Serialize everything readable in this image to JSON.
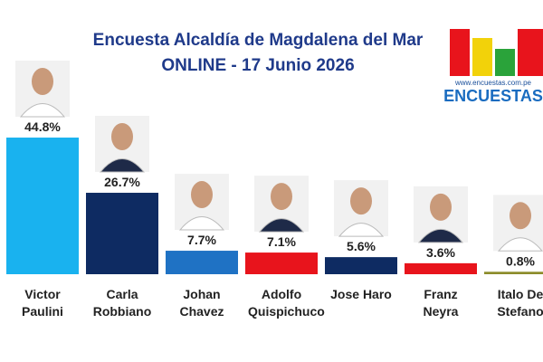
{
  "chart_data": {
    "type": "bar",
    "title": "Encuesta Alcaldía de Magdalena del Mar",
    "subtitle": "ONLINE - 17 Junio 2026",
    "logo_url": "www.encuestas.com.pe",
    "logo_name": "ENCUESTAS",
    "categories": [
      "Victor Paulini",
      "Carla Robbiano",
      "Johan Chavez",
      "Adolfo Quispichuco",
      "Jose Haro",
      "Franz Neyra",
      "Italo De Stefano"
    ],
    "values": [
      44.8,
      26.7,
      7.7,
      7.1,
      5.6,
      3.6,
      0.8
    ],
    "value_labels": [
      "44.8%",
      "26.7%",
      "7.7%",
      "7.1%",
      "5.6%",
      "3.6%",
      "0.8%"
    ],
    "colors": [
      "#19b2ef",
      "#0e2b62",
      "#1f72c4",
      "#e8141c",
      "#0e2b62",
      "#e8141c",
      "#8c8c2a"
    ]
  }
}
